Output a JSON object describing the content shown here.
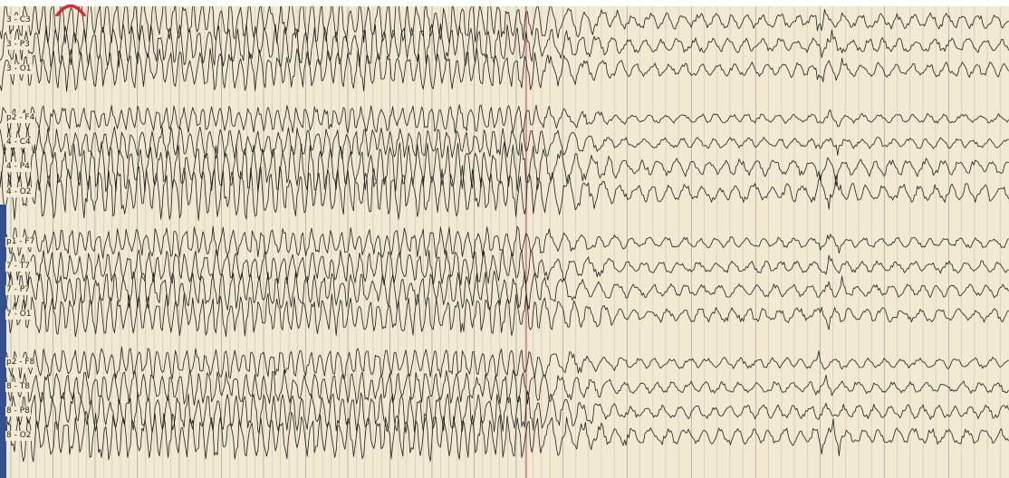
{
  "colors": {
    "background": "#f1e9d1",
    "trace": "#1e1e1e",
    "gridline": "#9aa39b",
    "marker_line": "#c4607a",
    "accent_blue": "#34508e",
    "arc_marker": "#d22b3a"
  },
  "channels": [
    {
      "label": "3 - C3"
    },
    {
      "label": "3 - P3"
    },
    {
      "label": "3 - O1"
    },
    {
      "label": "p2 - F4"
    },
    {
      "label": "4 - C4"
    },
    {
      "label": "4 - P4"
    },
    {
      "label": "4 - O2"
    },
    {
      "label": "p1 - F7"
    },
    {
      "label": "7 - T7"
    },
    {
      "label": "7 - P7"
    },
    {
      "label": "7 - O1"
    },
    {
      "label": "p2 - F8"
    },
    {
      "label": "8 - T8"
    },
    {
      "label": "8 - P8"
    },
    {
      "label": "8 - O2"
    }
  ],
  "icons": {
    "event_marker": "red-arc-icon"
  }
}
